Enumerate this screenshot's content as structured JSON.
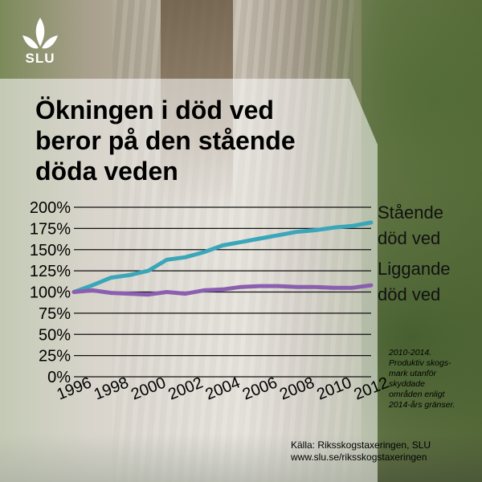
{
  "brand": {
    "name": "SLU"
  },
  "title_lines": [
    "Ökningen i död ved",
    "beror på den stående",
    "döda veden"
  ],
  "note_lines": [
    "2010-2014.",
    "Produktiv skogs-",
    "mark utanför",
    "skyddade",
    "områden enligt",
    "2014-års gränser."
  ],
  "source_lines": [
    "Källa: Riksskogstaxeringen, SLU",
    "www.slu.se/riksskogstaxeringen"
  ],
  "colors": {
    "staende": "#3aa6b9",
    "liggande": "#8a5fb0",
    "overlay": "#ffffff"
  },
  "icons": [
    "slu-logo-icon"
  ],
  "chart_data": {
    "type": "line",
    "title": "Ökningen i död ved beror på den stående döda veden",
    "x": [
      1996,
      1997,
      1998,
      1999,
      2000,
      2001,
      2002,
      2003,
      2004,
      2005,
      2006,
      2007,
      2008,
      2009,
      2010,
      2011,
      2012
    ],
    "x_ticks": [
      "1996",
      "1998",
      "2000",
      "2002",
      "2004",
      "2006",
      "2008",
      "2010",
      "2012"
    ],
    "y_ticks": [
      "0%",
      "25%",
      "50%",
      "75%",
      "100%",
      "125%",
      "150%",
      "175%",
      "200%"
    ],
    "ylim": [
      0,
      200
    ],
    "y_unit": "%",
    "grid": true,
    "series": [
      {
        "name": "Stående död ved",
        "name_lines": [
          "Stående",
          "död ved"
        ],
        "values": [
          100,
          108,
          117,
          120,
          125,
          138,
          141,
          147,
          155,
          159,
          163,
          167,
          171,
          173,
          176,
          178,
          182
        ]
      },
      {
        "name": "Liggande död ved",
        "name_lines": [
          "Liggande",
          "död ved"
        ],
        "values": [
          100,
          102,
          99,
          98,
          97,
          100,
          98,
          102,
          103,
          106,
          107,
          107,
          106,
          106,
          105,
          105,
          108
        ]
      }
    ]
  }
}
